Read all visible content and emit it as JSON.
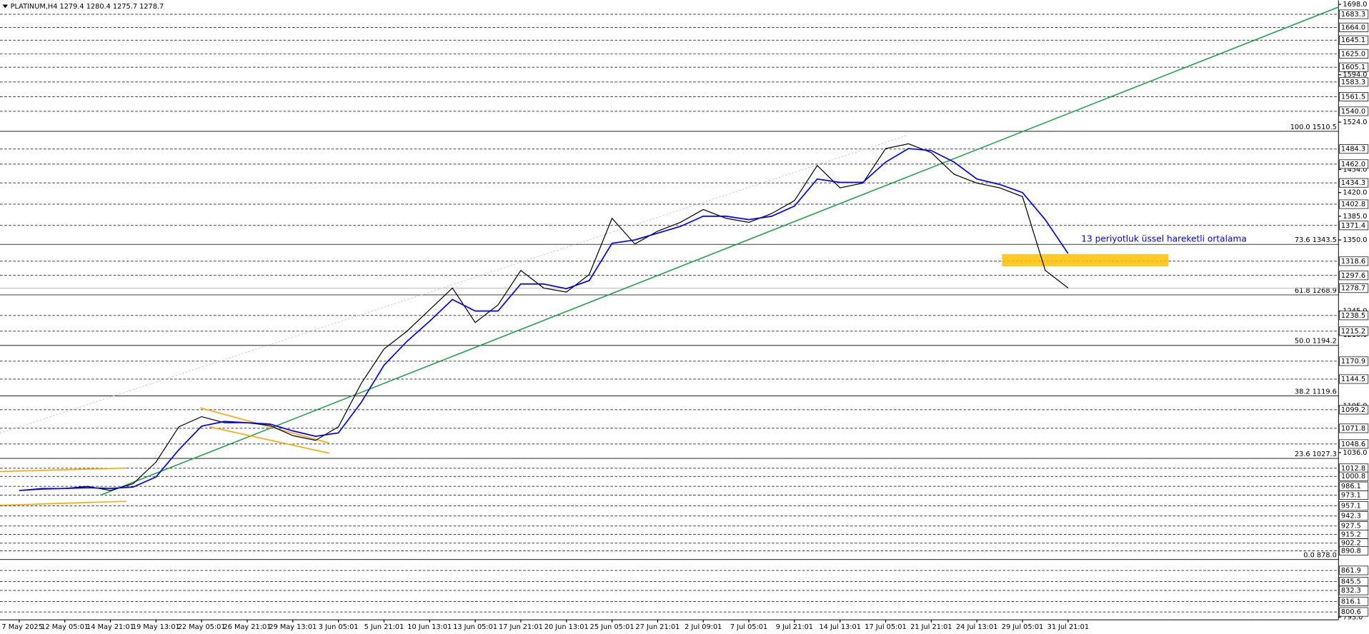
{
  "chart_data": {
    "type": "line",
    "title": "PLATINUM,H4  1279.4 1280.4 1275.7 1278.7",
    "annotation": "13 periyotluk üssel hareketli ortalama",
    "categories": [
      "7 May 2025",
      null,
      "12 May 05:01",
      null,
      "14 May 21:01",
      null,
      "19 May 13:01",
      null,
      "22 May 05:01",
      null,
      "26 May 21:01",
      null,
      "29 May 13:01",
      null,
      "3 Jun 05:01",
      null,
      "5 Jun 21:01",
      null,
      "10 Jun 13:01",
      null,
      "13 Jun 05:01",
      null,
      "17 Jun 21:01",
      null,
      "20 Jun 13:01",
      null,
      "25 Jun 05:01",
      null,
      "27 Jun 21:01",
      null,
      "2 Jul 09:01",
      null,
      "7 Jul 05:01",
      null,
      "9 Jul 21:01",
      null,
      "14 Jul 13:01",
      null,
      "17 Jul 05:01",
      null,
      "21 Jul 21:01",
      null,
      "24 Jul 13:01",
      null,
      "29 Jul 05:01",
      null,
      "31 Jul 21:01"
    ],
    "series": [
      {
        "color": "#000000",
        "values": [
          980,
          983,
          983,
          986,
          980,
          990,
          1022,
          1074,
          1089,
          1080,
          1080,
          1076,
          1061,
          1054,
          1074,
          1138,
          1189,
          1215,
          1247,
          1279,
          1228,
          1254,
          1305,
          1279,
          1273,
          1299,
          1382,
          1344,
          1363,
          1376,
          1395,
          1382,
          1376,
          1389,
          1408,
          1460,
          1427,
          1434,
          1485,
          1492,
          1479,
          1447,
          1434,
          1427,
          1414,
          1305,
          1279
        ]
      },
      {
        "color": "#0000ff",
        "values": [
          980,
          982,
          983,
          984,
          983,
          985,
          1000,
          1040,
          1075,
          1082,
          1080,
          1078,
          1068,
          1060,
          1065,
          1110,
          1165,
          1200,
          1230,
          1262,
          1245,
          1245,
          1285,
          1285,
          1278,
          1290,
          1345,
          1350,
          1360,
          1370,
          1385,
          1385,
          1380,
          1385,
          1400,
          1440,
          1435,
          1435,
          1465,
          1485,
          1482,
          1465,
          1440,
          1432,
          1420,
          1380,
          1330
        ]
      }
    ],
    "trendlines": [
      {
        "color": "#1fa34a",
        "x": [
          3.56,
          57.86
        ],
        "values": [
          973,
          1694
        ]
      },
      {
        "color": "#c0c0c0",
        "dotted": true,
        "x": [
          -0.84,
          38.93
        ],
        "values": [
          1064.4,
          1504.4
        ]
      },
      {
        "color": "#ffa500",
        "x": [
          -0.84,
          4.7
        ],
        "values": [
          1008,
          1013
        ]
      },
      {
        "color": "#ffa500",
        "x": [
          -0.84,
          4.7
        ],
        "values": [
          958,
          964
        ]
      },
      {
        "color": "#ffa500",
        "x": [
          7.95,
          13.6
        ],
        "values": [
          1102,
          1050
        ]
      },
      {
        "color": "#ffa500",
        "x": [
          8.34,
          13.6
        ],
        "values": [
          1074,
          1035
        ]
      }
    ],
    "zone": {
      "color": "#ffc000",
      "x": [
        43.1,
        50.4
      ],
      "values": [
        1311,
        1329
      ]
    },
    "fib_levels": [
      {
        "value": 1510.5,
        "label": "100.0 1510.5"
      },
      {
        "value": 1343.5,
        "label": "73.6 1343.5"
      },
      {
        "value": 1268.9,
        "label": "61.8 1268.9"
      },
      {
        "value": 1194.2,
        "label": "50.0 1194.2"
      },
      {
        "value": 1119.6,
        "label": "38.2 1119.6"
      },
      {
        "value": 1027.3,
        "label": "23.6 1027.3"
      },
      {
        "value": 878,
        "label": "0.0 878.0"
      }
    ],
    "levels": [
      1683.3,
      {
        "value": 1664,
        "label": "1664.0"
      },
      1645.1,
      {
        "value": 1625,
        "label": "1625.0"
      },
      1605.1,
      1583.3,
      1561.5,
      {
        "value": 1540,
        "label": "1540.0"
      },
      1484.3,
      {
        "value": 1462,
        "label": "1462.0"
      },
      1434.3,
      1402.8,
      1371.4,
      1318.6,
      1297.6,
      1238.5,
      1215.2,
      1170.9,
      1144.5,
      1099.2,
      1071.8,
      1048.6,
      1012.8,
      1000.8,
      986.1,
      973.1,
      957.1,
      942.3,
      927.5,
      915.2,
      902.2,
      890.8,
      861.9,
      845.5,
      832.3,
      816.1,
      800.6
    ],
    "last_price": 1278.7,
    "ylim": [
      789,
      1704
    ],
    "yticks": [
      {
        "value": 1698,
        "label": "1698.0"
      },
      {
        "value": 1594,
        "label": "1594.0"
      },
      {
        "value": 1524,
        "label": "1524.0"
      },
      {
        "value": 1454,
        "label": "1454.0"
      },
      {
        "value": 1420,
        "label": "1420.0"
      },
      {
        "value": 1385,
        "label": "1385.0"
      },
      {
        "value": 1350,
        "label": "1350.0"
      },
      {
        "value": 1245,
        "label": "1245.0"
      },
      {
        "value": 1210,
        "label": "1210.0"
      },
      {
        "value": 1105,
        "label": "1105.0"
      },
      {
        "value": 1036,
        "label": "1036.0"
      },
      {
        "value": 793,
        "label": "793.0"
      }
    ]
  }
}
